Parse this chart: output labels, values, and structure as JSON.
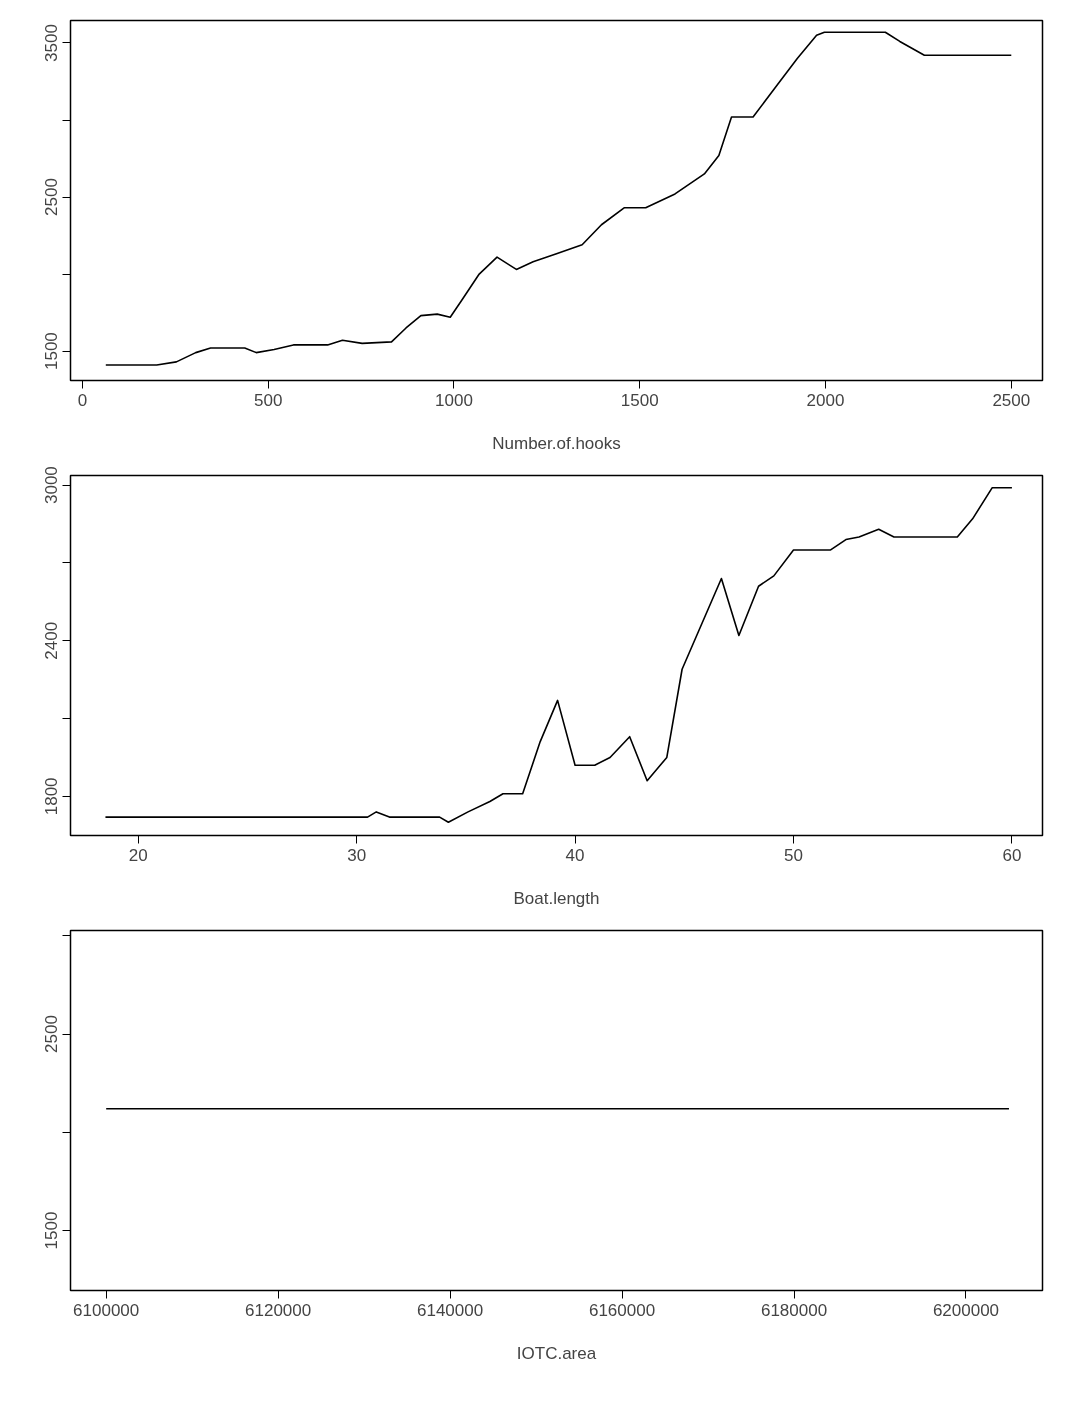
{
  "chart_data": [
    {
      "type": "line",
      "xlabel": "Number.of.hooks",
      "x": [
        63,
        200,
        253,
        305,
        345,
        437,
        468,
        516,
        568,
        660,
        700,
        753,
        832,
        871,
        911,
        955,
        990,
        1021,
        1068,
        1116,
        1168,
        1213,
        1274,
        1345,
        1397,
        1458,
        1516,
        1595,
        1674,
        1713,
        1747,
        1805,
        1871,
        1924,
        1976,
        1997,
        2161,
        2200,
        2266,
        2500
      ],
      "series": [
        {
          "color": "#000000",
          "values": [
            1410,
            1410,
            1430,
            1490,
            1520,
            1520,
            1490,
            1510,
            1540,
            1540,
            1570,
            1550,
            1560,
            1650,
            1730,
            1740,
            1720,
            1830,
            2000,
            2110,
            2030,
            2080,
            2130,
            2190,
            2320,
            2430,
            2430,
            2520,
            2650,
            2770,
            3020,
            3020,
            3230,
            3400,
            3550,
            3570,
            3570,
            3510,
            3420,
            3420
          ]
        }
      ],
      "xlim": [
        -32,
        2584
      ],
      "ylim": [
        1309,
        3646
      ],
      "xticks": [
        0,
        500,
        1000,
        1500,
        2000,
        2500
      ],
      "yticks": [
        1500,
        {
          "value": 2000,
          "label": null
        },
        2500,
        {
          "value": 3000,
          "label": null
        },
        3500
      ],
      "grid": false,
      "line_style": "solid",
      "marker": "none"
    },
    {
      "type": "line",
      "xlabel": "Boat.length",
      "x": [
        18.5,
        30.5,
        30.9,
        31.5,
        33.8,
        34.2,
        35.1,
        36.1,
        36.7,
        37.6,
        38.4,
        39.2,
        40.0,
        40.9,
        41.6,
        42.5,
        43.3,
        44.2,
        44.9,
        46.7,
        47.5,
        48.4,
        49.1,
        50.0,
        51.7,
        52.4,
        53.0,
        53.9,
        54.6,
        57.5,
        58.2,
        59.1,
        60.0
      ],
      "series": [
        {
          "color": "#000000",
          "values": [
            1720,
            1720,
            1740,
            1720,
            1720,
            1700,
            1740,
            1780,
            1810,
            1810,
            2010,
            2170,
            1920,
            1920,
            1950,
            2030,
            1860,
            1950,
            2290,
            2640,
            2420,
            2610,
            2650,
            2750,
            2750,
            2790,
            2800,
            2830,
            2800,
            2800,
            2870,
            2990,
            2990
          ]
        }
      ],
      "xlim": [
        16.9,
        61.4
      ],
      "ylim": [
        1649,
        3037
      ],
      "xticks": [
        20,
        30,
        40,
        50,
        60
      ],
      "yticks": [
        1800,
        {
          "value": 2100,
          "label": null
        },
        2400,
        {
          "value": 2700,
          "label": null
        },
        3000
      ],
      "grid": false,
      "line_style": "solid",
      "marker": "none"
    },
    {
      "type": "line",
      "xlabel": "IOTC.area",
      "x": [
        6100000,
        6205000
      ],
      "series": [
        {
          "color": "#000000",
          "values": [
            2120,
            2120
          ]
        }
      ],
      "xlim": [
        6095850,
        6208900
      ],
      "ylim": [
        1195,
        3027
      ],
      "xticks": [
        6100000,
        6120000,
        6140000,
        6160000,
        6180000,
        6200000
      ],
      "yticks": [
        1500,
        {
          "value": 2000,
          "label": null
        },
        2500,
        {
          "value": 3000,
          "label": null
        }
      ],
      "grid": false,
      "line_style": "solid",
      "marker": "none"
    }
  ]
}
